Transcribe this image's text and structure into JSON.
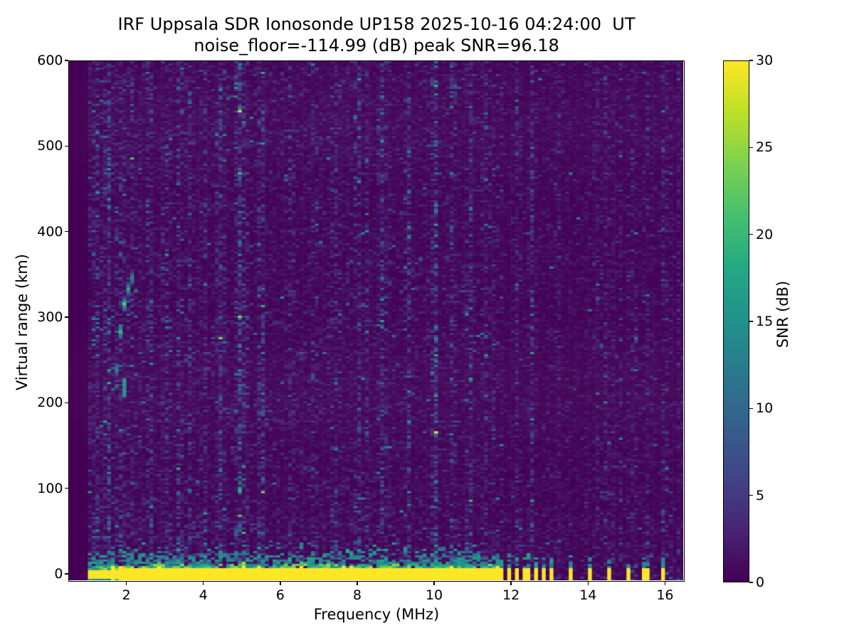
{
  "chart_data": {
    "type": "heatmap",
    "title_line1": "IRF Uppsala SDR Ionosonde UP158 2025-10-16 04:24:00  UT",
    "title_line2": "noise_floor=-114.99 (dB) peak SNR=96.18",
    "station": "UP158",
    "timestamp_ut": "2025-10-16 04:24:00 UT",
    "noise_floor_db": -114.99,
    "peak_snr_db": 96.18,
    "xlabel": "Frequency (MHz)",
    "ylabel": "Virtual range (km)",
    "x_ticks": [
      2,
      4,
      6,
      8,
      10,
      12,
      14,
      16
    ],
    "y_ticks": [
      0,
      100,
      200,
      300,
      400,
      500,
      600
    ],
    "xlim": [
      0.5,
      16.51
    ],
    "ylim": [
      -9.2,
      600
    ],
    "colorbar": {
      "label": "SNR (dB)",
      "ticks": [
        0,
        5,
        10,
        15,
        20,
        25,
        30
      ],
      "vmin": 0,
      "vmax": 30,
      "colormap": "viridis",
      "gradient": [
        "#440154",
        "#482475",
        "#414487",
        "#355f8d",
        "#2a788e",
        "#21918c",
        "#22a884",
        "#44bf70",
        "#7ad151",
        "#bddf26",
        "#fde725"
      ]
    },
    "data_extent": {
      "f_start": 1.0,
      "f_end": 16.42,
      "cell_mhz": 0.1,
      "cell_km": 2.5
    },
    "features": {
      "ground_band": {
        "f_start": 1.0,
        "f_end": 11.65,
        "center_km": 0,
        "half_width_km_min": 3.2,
        "half_width_km_max": 6.5,
        "fringe_km": 30
      },
      "bar_cluster": {
        "f_values": [
          11.76,
          11.94,
          12.12,
          12.31,
          12.49,
          12.67,
          12.85,
          13.03
        ],
        "half_width_mhz": 0.045,
        "half_height_km": 7
      },
      "isolated_bars": {
        "f_values": [
          13.55,
          14.03,
          14.52,
          15.01,
          15.5,
          15.99
        ],
        "half_width_mhz": 0.055,
        "half_height_km": 6.5,
        "cap_km": 25
      },
      "echo_trace": {
        "points": [
          [
            1.68,
            212,
            10
          ],
          [
            1.73,
            232,
            12
          ],
          [
            1.78,
            252,
            14
          ],
          [
            1.82,
            270,
            17
          ],
          [
            1.86,
            288,
            20
          ],
          [
            1.9,
            303,
            22
          ],
          [
            1.95,
            316,
            21
          ],
          [
            2.01,
            328,
            18
          ],
          [
            2.08,
            338,
            16
          ],
          [
            2.16,
            347,
            13
          ],
          [
            2.24,
            353,
            10
          ]
        ]
      },
      "echo_blip": {
        "f": 1.94,
        "km1": 208,
        "km2": 231,
        "v": 14
      },
      "scatter_patch": {
        "f1": 1.05,
        "f2": 1.6,
        "km1": 268,
        "km2": 300,
        "p": 0.22,
        "v": 9
      },
      "rfi_stripes": [
        {
          "f": 1.22,
          "s": 0.5
        },
        {
          "f": 1.52,
          "s": 0.9
        },
        {
          "f": 1.86,
          "s": 0.6
        },
        {
          "f": 2.12,
          "s": 0.5
        },
        {
          "f": 2.63,
          "s": 0.8
        },
        {
          "f": 3.06,
          "s": 0.6
        },
        {
          "f": 3.38,
          "s": 0.7
        },
        {
          "f": 3.62,
          "s": 0.4
        },
        {
          "f": 4.02,
          "s": 0.5
        },
        {
          "f": 4.46,
          "s": 0.9
        },
        {
          "f": 4.94,
          "s": 1.5
        },
        {
          "f": 5.48,
          "s": 0.6
        },
        {
          "f": 6.28,
          "s": 0.5
        },
        {
          "f": 6.86,
          "s": 0.4
        },
        {
          "f": 7.46,
          "s": 0.5
        },
        {
          "f": 8.02,
          "s": 0.7
        },
        {
          "f": 8.64,
          "s": 0.8
        },
        {
          "f": 9.32,
          "s": 0.5
        },
        {
          "f": 10.01,
          "s": 1.6
        },
        {
          "f": 10.47,
          "s": 0.6
        },
        {
          "f": 10.92,
          "s": 0.5
        },
        {
          "f": 11.32,
          "s": 0.4
        },
        {
          "f": 12.18,
          "s": 0.5
        },
        {
          "f": 12.55,
          "s": 0.4
        },
        {
          "f": 13.22,
          "s": 0.35
        },
        {
          "f": 14.24,
          "s": 0.45
        },
        {
          "f": 14.62,
          "s": 0.3
        },
        {
          "f": 15.12,
          "s": 0.4
        },
        {
          "f": 15.56,
          "s": 0.35
        },
        {
          "f": 16.08,
          "s": 0.4
        }
      ],
      "noise": {
        "seed": 20251016,
        "mean_db": 0.95
      }
    }
  }
}
